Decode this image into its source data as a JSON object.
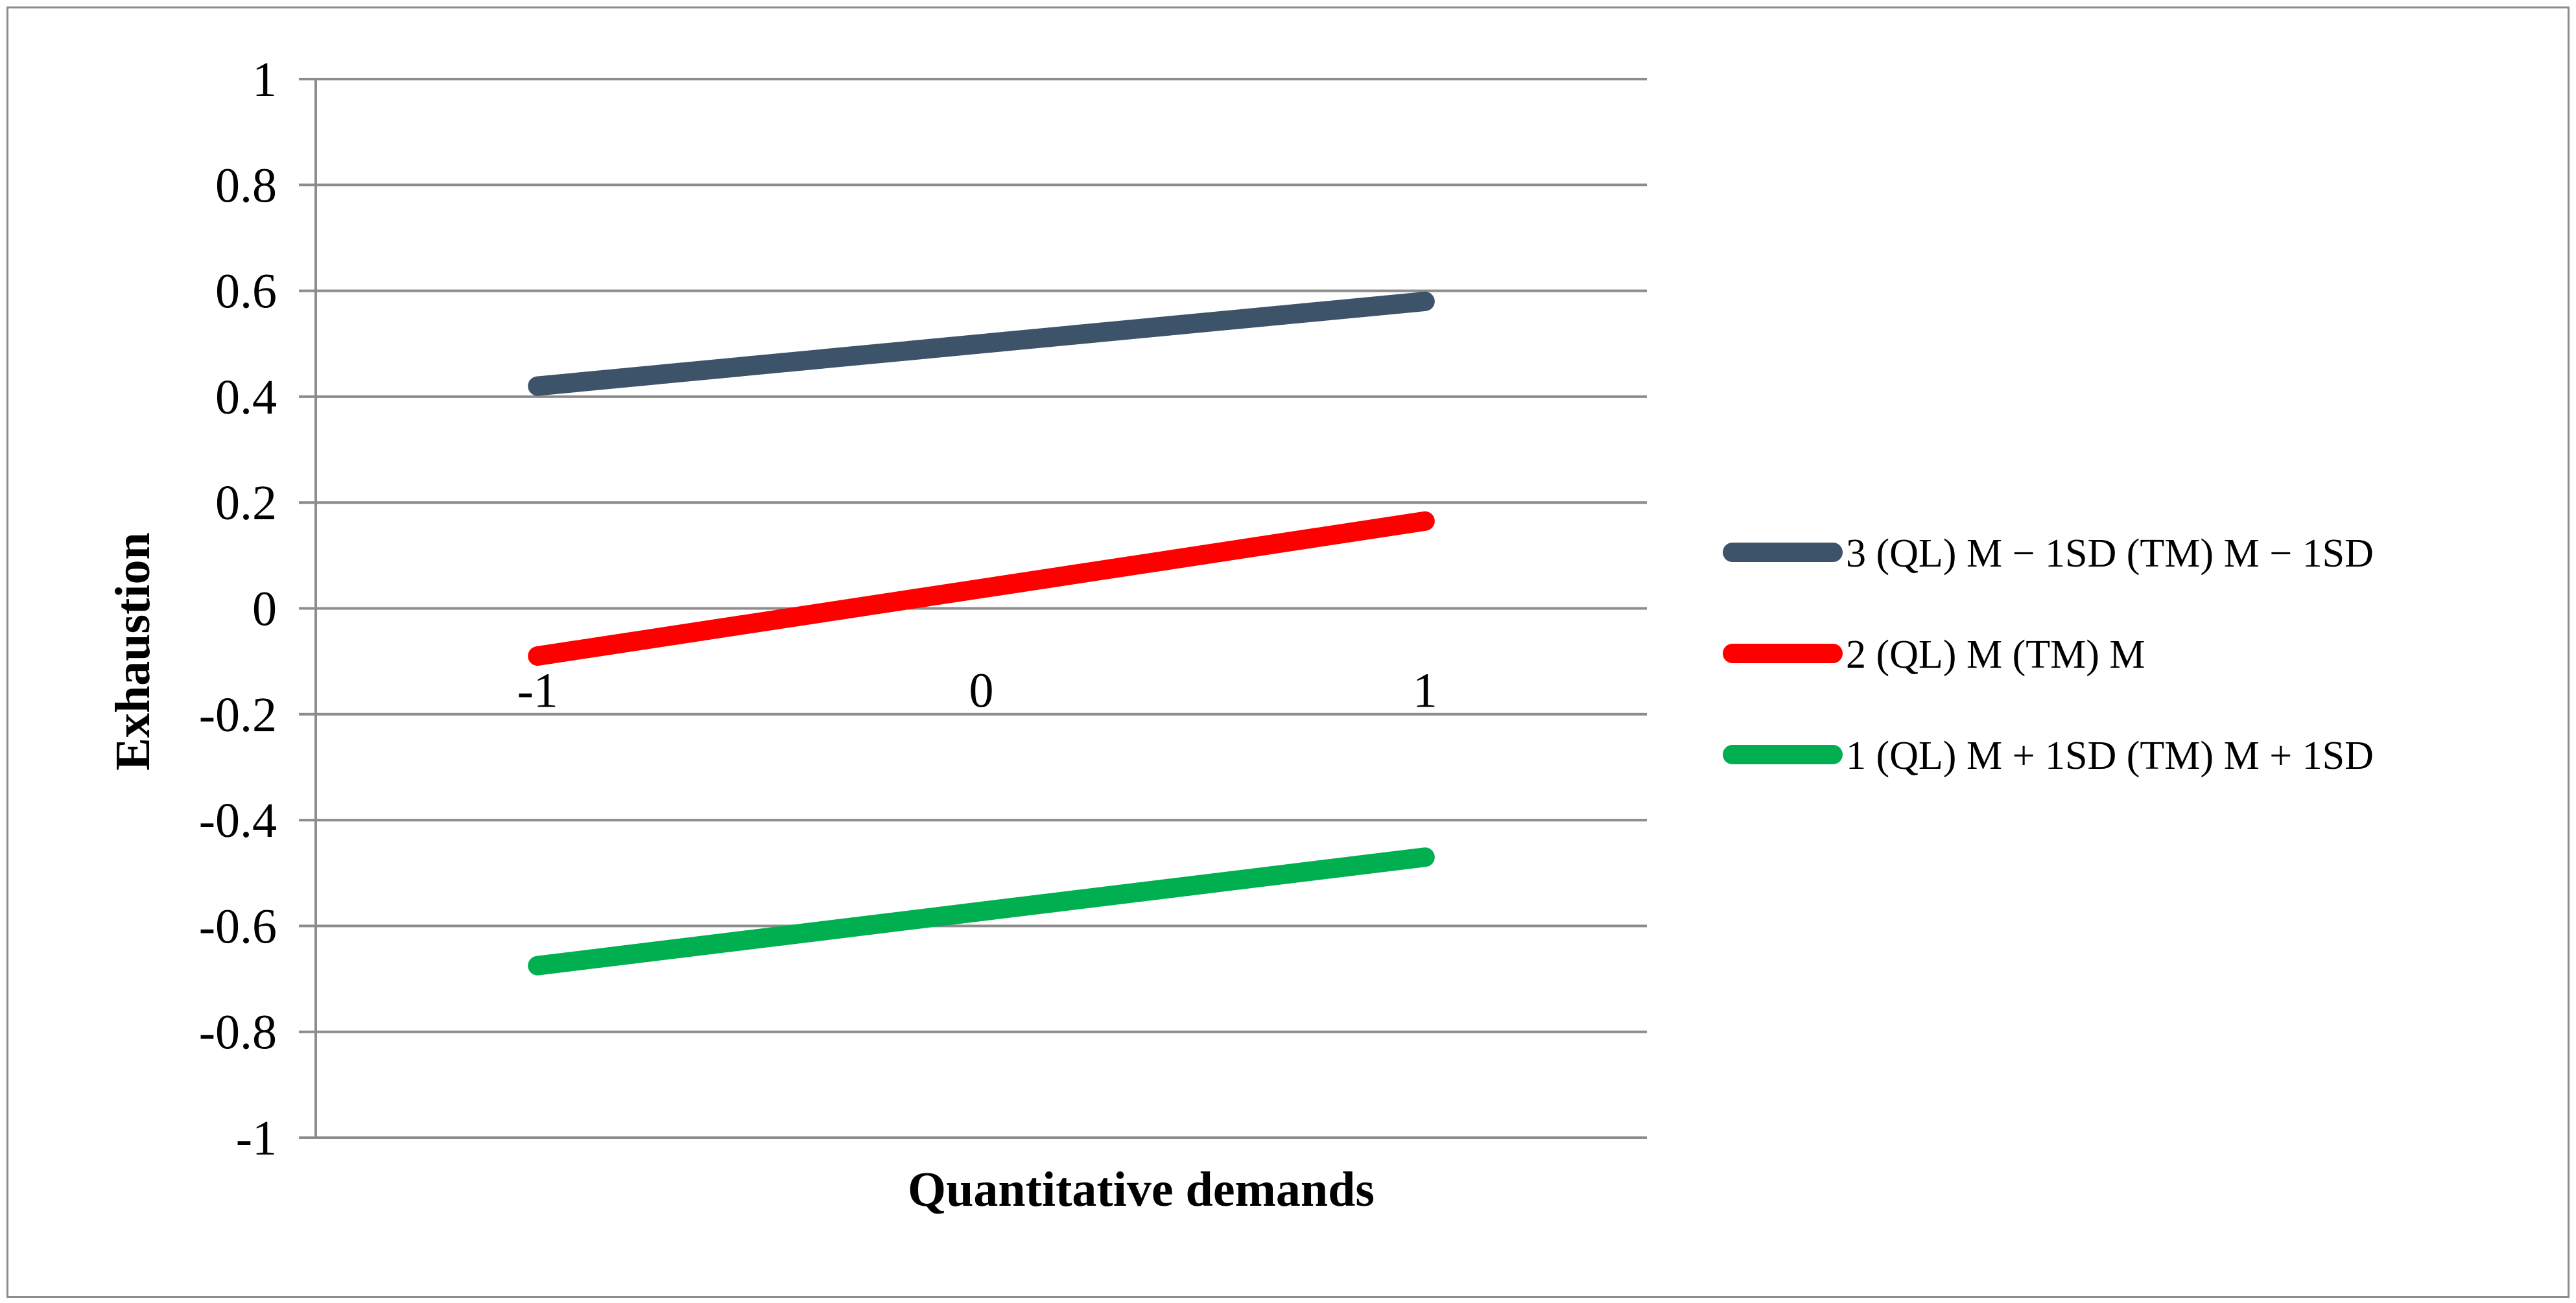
{
  "chart_data": {
    "type": "line",
    "xlabel": "Quantitative demands",
    "ylabel": "Exhaustion",
    "x": [
      -1,
      1
    ],
    "x_tick_labels": [
      "-1",
      "0",
      "1"
    ],
    "xlim": [
      -1.5,
      1.5
    ],
    "ylim": [
      -1,
      1
    ],
    "y_tick_labels": [
      "1",
      "0.8",
      "0.6",
      "0.4",
      "0.2",
      "0",
      "-0.2",
      "-0.4",
      "-0.6",
      "-0.8",
      "-1"
    ],
    "grid": "horizontal",
    "legend_position": "right",
    "series": [
      {
        "name": "3  (QL) M − 1SD (TM) M − 1SD",
        "color": "#3d5369",
        "values": [
          0.42,
          0.58
        ]
      },
      {
        "name": "2  (QL) M (TM) M",
        "color": "#ff0000",
        "values": [
          -0.09,
          0.165
        ]
      },
      {
        "name": "1  (QL) M + 1SD (TM) M + 1SD",
        "color": "#00b050",
        "values": [
          -0.675,
          -0.47
        ]
      }
    ]
  }
}
